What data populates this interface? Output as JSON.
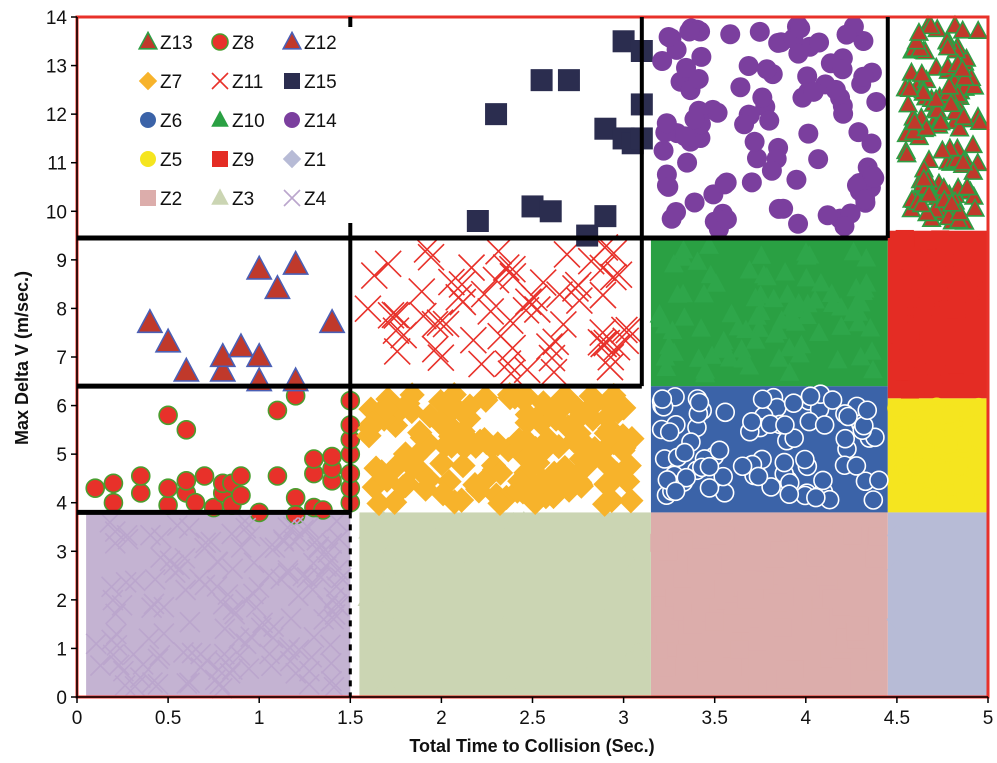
{
  "chart_data": {
    "type": "scatter",
    "xlabel": "Total Time to Collision (Sec.)",
    "ylabel": "Max Delta V (m/sec.)",
    "xlim": [
      0,
      5
    ],
    "ylim": [
      0,
      14
    ],
    "x_ticks": [
      "0",
      "0.5",
      "1",
      "1.5",
      "2",
      "2.5",
      "3",
      "3.5",
      "4",
      "4.5",
      "5"
    ],
    "y_ticks": [
      "0",
      "1",
      "2",
      "3",
      "4",
      "5",
      "6",
      "7",
      "8",
      "9",
      "10",
      "11",
      "12",
      "13",
      "14"
    ],
    "grid": false,
    "legend_position": "top-left",
    "outline_color": "#e8312a",
    "zone_boundaries": {
      "x": [
        1.5,
        3.1,
        4.45
      ],
      "y": [
        3.8,
        6.4,
        9.45
      ]
    },
    "series": [
      {
        "name": "Z13",
        "marker": "triangle",
        "color": "#c0392b",
        "edge": "#2e9e44",
        "region": {
          "x": [
            4.5,
            5.0
          ],
          "y": [
            9.6,
            14.0
          ]
        }
      },
      {
        "name": "Z8",
        "marker": "circle",
        "color": "#e8312a",
        "edge": "#4a9e2f",
        "points": [
          [
            0.1,
            4.3
          ],
          [
            0.2,
            4.0
          ],
          [
            0.2,
            4.4
          ],
          [
            0.35,
            4.2
          ],
          [
            0.35,
            4.55
          ],
          [
            0.5,
            3.95
          ],
          [
            0.5,
            4.3
          ],
          [
            0.5,
            5.8
          ],
          [
            0.6,
            5.5
          ],
          [
            0.6,
            4.2
          ],
          [
            0.6,
            4.45
          ],
          [
            0.65,
            4.0
          ],
          [
            0.7,
            4.55
          ],
          [
            0.75,
            3.9
          ],
          [
            0.8,
            4.2
          ],
          [
            0.8,
            4.4
          ],
          [
            0.85,
            3.95
          ],
          [
            0.85,
            4.4
          ],
          [
            0.9,
            4.15
          ],
          [
            0.9,
            4.55
          ],
          [
            1.0,
            3.8
          ],
          [
            1.1,
            4.55
          ],
          [
            1.1,
            5.9
          ],
          [
            1.2,
            4.1
          ],
          [
            1.2,
            3.75
          ],
          [
            1.2,
            6.2
          ],
          [
            1.3,
            3.9
          ],
          [
            1.3,
            4.6
          ],
          [
            1.3,
            4.9
          ],
          [
            1.35,
            3.85
          ],
          [
            1.4,
            4.45
          ],
          [
            1.4,
            4.7
          ],
          [
            1.4,
            4.95
          ],
          [
            1.5,
            4.0
          ],
          [
            1.5,
            4.3
          ],
          [
            1.5,
            4.6
          ],
          [
            1.5,
            5.0
          ],
          [
            1.5,
            5.3
          ],
          [
            1.5,
            5.6
          ],
          [
            1.5,
            6.1
          ]
        ]
      },
      {
        "name": "Z12",
        "marker": "triangle",
        "color": "#c0392b",
        "edge": "#4a5fb5",
        "points": [
          [
            0.4,
            7.7
          ],
          [
            0.5,
            7.3
          ],
          [
            0.6,
            6.7
          ],
          [
            0.8,
            6.7
          ],
          [
            0.8,
            7.0
          ],
          [
            0.9,
            7.2
          ],
          [
            1.0,
            6.5
          ],
          [
            1.0,
            7.0
          ],
          [
            1.0,
            8.8
          ],
          [
            1.1,
            8.4
          ],
          [
            1.2,
            6.5
          ],
          [
            1.2,
            8.9
          ],
          [
            1.4,
            7.7
          ]
        ]
      },
      {
        "name": "Z7",
        "marker": "diamond",
        "color": "#f7b32b",
        "region": {
          "x": [
            1.55,
            3.1
          ],
          "y": [
            3.8,
            6.4
          ]
        }
      },
      {
        "name": "Z11",
        "marker": "x",
        "color": "#e8312a",
        "region": {
          "x": [
            1.55,
            3.1
          ],
          "y": [
            6.4,
            9.45
          ]
        }
      },
      {
        "name": "Z15",
        "marker": "square",
        "color": "#2b2d4f",
        "points": [
          [
            2.2,
            9.8
          ],
          [
            2.3,
            12.0
          ],
          [
            2.5,
            10.1
          ],
          [
            2.55,
            12.7
          ],
          [
            2.6,
            10.0
          ],
          [
            2.7,
            12.7
          ],
          [
            2.8,
            9.5
          ],
          [
            2.9,
            9.9
          ],
          [
            2.9,
            11.7
          ],
          [
            3.0,
            11.5
          ],
          [
            3.0,
            13.5
          ],
          [
            3.05,
            11.4
          ],
          [
            3.1,
            13.3
          ],
          [
            3.1,
            12.2
          ],
          [
            3.1,
            11.5
          ]
        ]
      },
      {
        "name": "Z6",
        "marker": "circle",
        "color": "#3b63a8",
        "region": {
          "x": [
            3.15,
            4.45
          ],
          "y": [
            3.8,
            6.4
          ]
        }
      },
      {
        "name": "Z10",
        "marker": "triangle",
        "color": "#2aa043",
        "region": {
          "x": [
            3.15,
            4.45
          ],
          "y": [
            6.4,
            9.45
          ]
        }
      },
      {
        "name": "Z14",
        "marker": "circle",
        "color": "#7b3f9e",
        "region": {
          "x": [
            3.15,
            4.45
          ],
          "y": [
            9.45,
            14.0
          ]
        }
      },
      {
        "name": "Z5",
        "marker": "circle",
        "color": "#f5e51f",
        "region": {
          "x": [
            4.45,
            5.0
          ],
          "y": [
            3.8,
            6.15
          ]
        }
      },
      {
        "name": "Z9",
        "marker": "square",
        "color": "#e42c24",
        "region": {
          "x": [
            4.45,
            5.0
          ],
          "y": [
            6.15,
            9.6
          ]
        }
      },
      {
        "name": "Z1",
        "marker": "diamond",
        "color": "#b7bbd6",
        "region": {
          "x": [
            4.45,
            5.0
          ],
          "y": [
            0.0,
            3.8
          ]
        }
      },
      {
        "name": "Z2",
        "marker": "square",
        "color": "#dcadab",
        "region": {
          "x": [
            3.15,
            4.45
          ],
          "y": [
            0.0,
            3.8
          ]
        }
      },
      {
        "name": "Z3",
        "marker": "triangle",
        "color": "#cbd5b3",
        "region": {
          "x": [
            1.55,
            3.15
          ],
          "y": [
            0.0,
            3.8
          ]
        }
      },
      {
        "name": "Z4",
        "marker": "x",
        "color": "#c4b3d2",
        "region": {
          "x": [
            0.05,
            1.5
          ],
          "y": [
            0.0,
            3.8
          ]
        }
      }
    ]
  }
}
